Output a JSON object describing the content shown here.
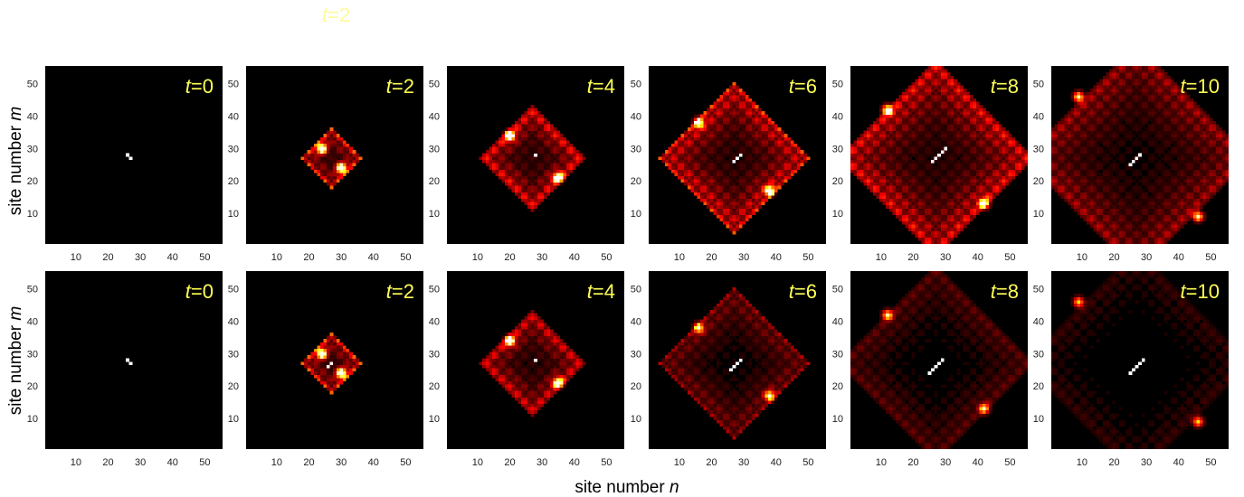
{
  "figure": {
    "stray_label": {
      "t": "t",
      "eq": "=2"
    },
    "xlabel": "site number",
    "xlabel_var": "n",
    "ylabel": "site number",
    "ylabel_var": "m"
  },
  "chart_data": {
    "type": "heatmap",
    "grid_size": [
      55,
      55
    ],
    "xlim": [
      1,
      55
    ],
    "ylim": [
      1,
      55
    ],
    "xticks": [
      10,
      20,
      30,
      40,
      50
    ],
    "yticks": [
      10,
      20,
      30,
      40,
      50
    ],
    "colormap": "hot",
    "colors": {
      "background": "#000000",
      "label": "#ffff55"
    },
    "rows": [
      {
        "panels": [
          {
            "t_label": "t",
            "t_value": "=0",
            "t": 0,
            "spread": 0,
            "center": [
              27,
              27
            ],
            "diagonal": [
              [
                26,
                28
              ],
              [
                27,
                27
              ]
            ],
            "bright_corners": [],
            "intensity": 1.0
          },
          {
            "t_label": "t",
            "t_value": "=2",
            "t": 2,
            "spread": 4,
            "center": [
              27,
              27
            ],
            "diagonal": [],
            "bright_corners": [
              [
                24,
                30
              ],
              [
                30,
                24
              ]
            ],
            "intensity": 1.0
          },
          {
            "t_label": "t",
            "t_value": "=4",
            "t": 4,
            "spread": 8,
            "center": [
              27,
              27
            ],
            "diagonal": [
              [
                28,
                28
              ]
            ],
            "bright_corners": [
              [
                20,
                34
              ],
              [
                35,
                21
              ]
            ],
            "intensity": 0.9
          },
          {
            "t_label": "t",
            "t_value": "=6",
            "t": 6,
            "spread": 12,
            "center": [
              27,
              27
            ],
            "diagonal": [
              [
                27,
                26
              ],
              [
                28,
                27
              ],
              [
                29,
                28
              ]
            ],
            "bright_corners": [
              [
                16,
                38
              ],
              [
                38,
                17
              ]
            ],
            "intensity": 0.85
          },
          {
            "t_label": "t",
            "t_value": "=8",
            "t": 8,
            "spread": 16,
            "center": [
              27,
              27
            ],
            "diagonal": [
              [
                26,
                26
              ],
              [
                27,
                27
              ],
              [
                28,
                28
              ],
              [
                29,
                29
              ],
              [
                30,
                30
              ]
            ],
            "bright_corners": [
              [
                12,
                42
              ],
              [
                42,
                13
              ]
            ],
            "intensity": 0.8
          },
          {
            "t_label": "t",
            "t_value": "=10",
            "t": 10,
            "spread": 19,
            "center": [
              27,
              27
            ],
            "diagonal": [
              [
                25,
                25
              ],
              [
                26,
                26
              ],
              [
                27,
                27
              ],
              [
                28,
                28
              ]
            ],
            "bright_corners": [
              [
                9,
                46
              ],
              [
                46,
                9
              ]
            ],
            "intensity": 0.55
          }
        ]
      },
      {
        "panels": [
          {
            "t_label": "t",
            "t_value": "=0",
            "t": 0,
            "spread": 0,
            "center": [
              27,
              27
            ],
            "diagonal": [
              [
                26,
                28
              ],
              [
                27,
                27
              ]
            ],
            "bright_corners": [],
            "intensity": 1.0
          },
          {
            "t_label": "t",
            "t_value": "=2",
            "t": 2,
            "spread": 4,
            "center": [
              27,
              27
            ],
            "diagonal": [
              [
                26,
                26
              ],
              [
                27,
                27
              ]
            ],
            "bright_corners": [
              [
                24,
                30
              ],
              [
                30,
                24
              ]
            ],
            "intensity": 1.0
          },
          {
            "t_label": "t",
            "t_value": "=4",
            "t": 4,
            "spread": 8,
            "center": [
              27,
              27
            ],
            "diagonal": [
              [
                28,
                28
              ]
            ],
            "bright_corners": [
              [
                20,
                34
              ],
              [
                35,
                21
              ]
            ],
            "intensity": 0.8
          },
          {
            "t_label": "t",
            "t_value": "=6",
            "t": 6,
            "spread": 12,
            "center": [
              27,
              27
            ],
            "diagonal": [
              [
                26,
                25
              ],
              [
                27,
                26
              ],
              [
                28,
                27
              ],
              [
                29,
                28
              ]
            ],
            "bright_corners": [
              [
                16,
                38
              ],
              [
                38,
                17
              ]
            ],
            "intensity": 0.45
          },
          {
            "t_label": "t",
            "t_value": "=8",
            "t": 8,
            "spread": 16,
            "center": [
              27,
              27
            ],
            "diagonal": [
              [
                25,
                24
              ],
              [
                26,
                25
              ],
              [
                27,
                26
              ],
              [
                28,
                27
              ],
              [
                29,
                28
              ]
            ],
            "bright_corners": [
              [
                12,
                42
              ],
              [
                42,
                13
              ]
            ],
            "intensity": 0.3
          },
          {
            "t_label": "t",
            "t_value": "=10",
            "t": 10,
            "spread": 19,
            "center": [
              27,
              27
            ],
            "diagonal": [
              [
                25,
                24
              ],
              [
                26,
                25
              ],
              [
                27,
                26
              ],
              [
                28,
                27
              ],
              [
                29,
                28
              ]
            ],
            "bright_corners": [
              [
                9,
                46
              ],
              [
                46,
                9
              ]
            ],
            "intensity": 0.18
          }
        ]
      }
    ]
  }
}
